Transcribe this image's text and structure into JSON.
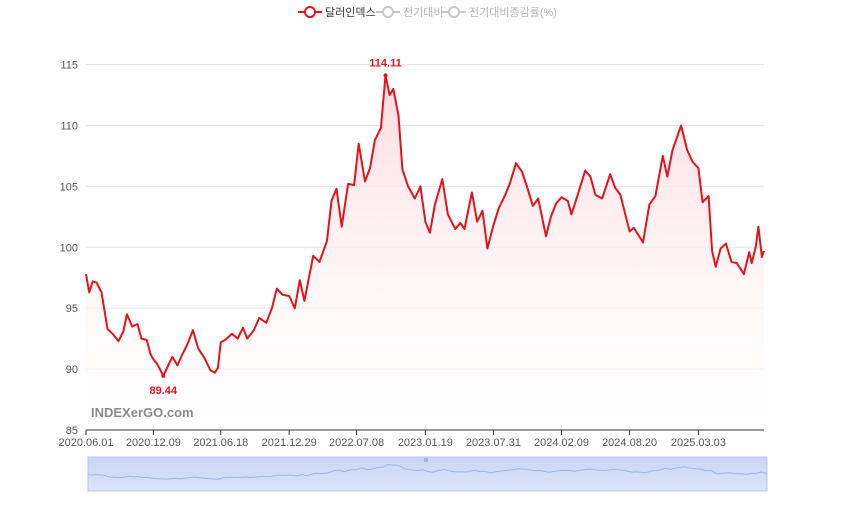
{
  "legend": [
    {
      "label": "달러인덱스",
      "active": true,
      "color": "#e0141e"
    },
    {
      "label": "전기대비",
      "active": false,
      "color": "#c8c8c8"
    },
    {
      "label": "전기대비증감률(%)",
      "active": false,
      "color": "#c8c8c8"
    }
  ],
  "watermark": "INDEXerGO.com",
  "chart_data": {
    "type": "area",
    "series": [
      {
        "name": "달러인덱스",
        "color": "#e0141e",
        "points": [
          [
            "2020.06.01",
            97.8
          ],
          [
            "2020.06.10",
            96.3
          ],
          [
            "2020.06.20",
            97.2
          ],
          [
            "2020.07.01",
            97.1
          ],
          [
            "2020.07.15",
            96.3
          ],
          [
            "2020.08.01",
            93.3
          ],
          [
            "2020.08.15",
            92.9
          ],
          [
            "2020.09.01",
            92.3
          ],
          [
            "2020.09.15",
            93.1
          ],
          [
            "2020.09.25",
            94.5
          ],
          [
            "2020.10.10",
            93.5
          ],
          [
            "2020.10.25",
            93.7
          ],
          [
            "2020.11.05",
            92.5
          ],
          [
            "2020.11.20",
            92.4
          ],
          [
            "2020.12.01",
            91.2
          ],
          [
            "2020.12.09",
            90.8
          ],
          [
            "2020.12.20",
            90.4
          ],
          [
            "2021.01.06",
            89.44
          ],
          [
            "2021.01.20",
            90.3
          ],
          [
            "2021.02.01",
            91.0
          ],
          [
            "2021.02.15",
            90.3
          ],
          [
            "2021.03.01",
            91.2
          ],
          [
            "2021.03.15",
            92.0
          ],
          [
            "2021.03.31",
            93.2
          ],
          [
            "2021.04.15",
            91.7
          ],
          [
            "2021.05.01",
            91.0
          ],
          [
            "2021.05.20",
            89.9
          ],
          [
            "2021.06.01",
            89.7
          ],
          [
            "2021.06.10",
            90.1
          ],
          [
            "2021.06.18",
            92.2
          ],
          [
            "2021.07.01",
            92.4
          ],
          [
            "2021.07.20",
            92.9
          ],
          [
            "2021.08.05",
            92.5
          ],
          [
            "2021.08.20",
            93.4
          ],
          [
            "2021.09.01",
            92.5
          ],
          [
            "2021.09.20",
            93.2
          ],
          [
            "2021.10.05",
            94.2
          ],
          [
            "2021.10.25",
            93.8
          ],
          [
            "2021.11.10",
            95.0
          ],
          [
            "2021.11.24",
            96.6
          ],
          [
            "2021.12.10",
            96.1
          ],
          [
            "2021.12.29",
            96.0
          ],
          [
            "2022.01.14",
            95.0
          ],
          [
            "2022.01.28",
            97.3
          ],
          [
            "2022.02.10",
            95.6
          ],
          [
            "2022.03.07",
            99.3
          ],
          [
            "2022.03.25",
            98.8
          ],
          [
            "2022.04.15",
            100.5
          ],
          [
            "2022.04.28",
            103.8
          ],
          [
            "2022.05.12",
            104.8
          ],
          [
            "2022.05.27",
            101.7
          ],
          [
            "2022.06.14",
            105.2
          ],
          [
            "2022.07.01",
            105.1
          ],
          [
            "2022.07.14",
            108.5
          ],
          [
            "2022.08.01",
            105.4
          ],
          [
            "2022.08.15",
            106.5
          ],
          [
            "2022.08.29",
            108.8
          ],
          [
            "2022.09.15",
            109.8
          ],
          [
            "2022.09.28",
            114.11
          ],
          [
            "2022.10.10",
            112.5
          ],
          [
            "2022.10.20",
            113.0
          ],
          [
            "2022.11.04",
            110.8
          ],
          [
            "2022.11.15",
            106.4
          ],
          [
            "2022.12.01",
            105.0
          ],
          [
            "2022.12.20",
            104.0
          ],
          [
            "2023.01.05",
            105.0
          ],
          [
            "2023.01.19",
            102.1
          ],
          [
            "2023.02.01",
            101.2
          ],
          [
            "2023.02.15",
            103.5
          ],
          [
            "2023.03.08",
            105.6
          ],
          [
            "2023.03.24",
            102.7
          ],
          [
            "2023.04.14",
            101.5
          ],
          [
            "2023.04.28",
            102.0
          ],
          [
            "2023.05.10",
            101.5
          ],
          [
            "2023.05.31",
            104.5
          ],
          [
            "2023.06.15",
            102.1
          ],
          [
            "2023.06.30",
            103.0
          ],
          [
            "2023.07.14",
            99.9
          ],
          [
            "2023.07.31",
            101.8
          ],
          [
            "2023.08.15",
            103.2
          ],
          [
            "2023.09.01",
            104.2
          ],
          [
            "2023.09.15",
            105.2
          ],
          [
            "2023.10.03",
            106.9
          ],
          [
            "2023.10.20",
            106.2
          ],
          [
            "2023.11.03",
            105.0
          ],
          [
            "2023.11.20",
            103.4
          ],
          [
            "2023.12.05",
            104.0
          ],
          [
            "2023.12.27",
            100.9
          ],
          [
            "2024.01.10",
            102.5
          ],
          [
            "2024.01.25",
            103.6
          ],
          [
            "2024.02.09",
            104.1
          ],
          [
            "2024.02.27",
            103.8
          ],
          [
            "2024.03.08",
            102.7
          ],
          [
            "2024.03.26",
            104.3
          ],
          [
            "2024.04.16",
            106.3
          ],
          [
            "2024.05.01",
            105.8
          ],
          [
            "2024.05.15",
            104.3
          ],
          [
            "2024.06.03",
            104.0
          ],
          [
            "2024.06.26",
            106.0
          ],
          [
            "2024.07.10",
            104.9
          ],
          [
            "2024.07.25",
            104.3
          ],
          [
            "2024.08.20",
            101.3
          ],
          [
            "2024.09.01",
            101.6
          ],
          [
            "2024.09.27",
            100.4
          ],
          [
            "2024.10.15",
            103.5
          ],
          [
            "2024.11.01",
            104.2
          ],
          [
            "2024.11.22",
            107.5
          ],
          [
            "2024.12.05",
            105.8
          ],
          [
            "2024.12.20",
            108.0
          ],
          [
            "2025.01.13",
            110.0
          ],
          [
            "2025.01.30",
            108.0
          ],
          [
            "2025.02.15",
            107.0
          ],
          [
            "2025.03.03",
            106.5
          ],
          [
            "2025.03.15",
            103.7
          ],
          [
            "2025.04.01",
            104.2
          ],
          [
            "2025.04.11",
            99.7
          ],
          [
            "2025.04.21",
            98.4
          ],
          [
            "2025.05.05",
            99.9
          ],
          [
            "2025.05.20",
            100.3
          ],
          [
            "2025.06.05",
            98.8
          ],
          [
            "2025.06.20",
            98.7
          ],
          [
            "2025.07.10",
            97.8
          ],
          [
            "2025.07.25",
            99.6
          ],
          [
            "2025.08.01",
            98.7
          ],
          [
            "2025.08.13",
            100.1
          ],
          [
            "2025.08.20",
            101.7
          ],
          [
            "2025.08.30",
            99.2
          ],
          [
            "2025.09.05",
            99.7
          ]
        ]
      }
    ],
    "x_ticks": [
      "2020.06.01",
      "2020.12.09",
      "2021.06.18",
      "2021.12.29",
      "2022.07.08",
      "2023.01.19",
      "2023.07.31",
      "2024.02.09",
      "2024.08.20",
      "2025.03.03"
    ],
    "y_ticks": [
      85,
      90,
      95,
      100,
      105,
      110,
      115
    ],
    "ylim": [
      85,
      118
    ],
    "annotations": [
      {
        "x": "2022.09.28",
        "y": 114.11,
        "label": "114.11",
        "position": "above"
      },
      {
        "x": "2021.01.06",
        "y": 89.44,
        "label": "89.44",
        "position": "below"
      }
    ],
    "grid": true,
    "legend_position": "top-center",
    "has_zoom_slider": true
  }
}
